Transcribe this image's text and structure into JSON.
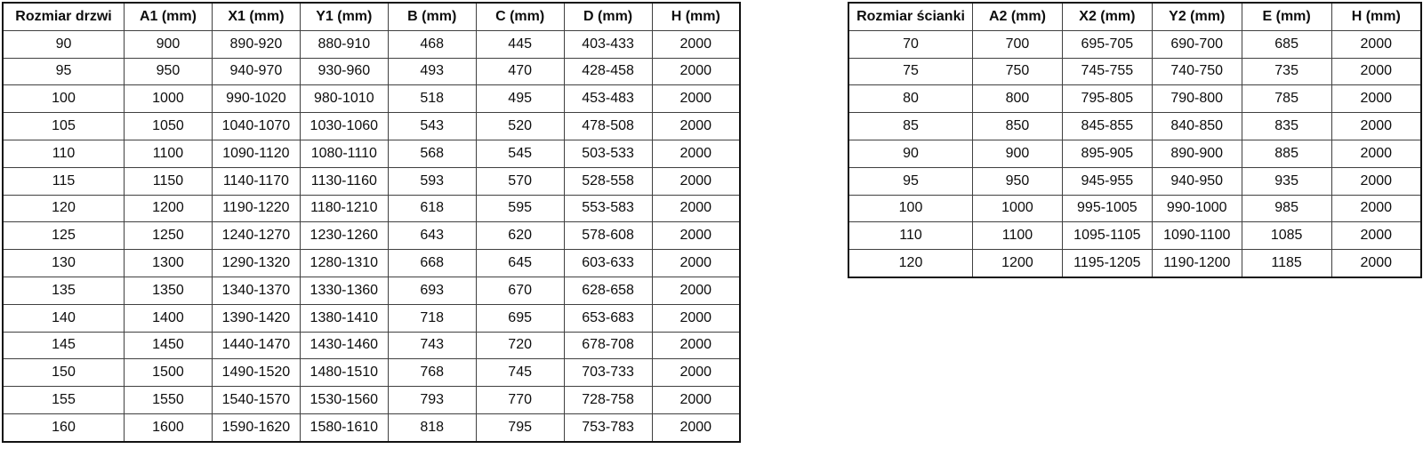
{
  "door_table": {
    "title": "Rozmiar drzwi",
    "headers": [
      "Rozmiar drzwi",
      "A1 (mm)",
      "X1 (mm)",
      "Y1 (mm)",
      "B (mm)",
      "C (mm)",
      "D (mm)",
      "H (mm)"
    ],
    "rows": [
      [
        "90",
        "900",
        "890-920",
        "880-910",
        "468",
        "445",
        "403-433",
        "2000"
      ],
      [
        "95",
        "950",
        "940-970",
        "930-960",
        "493",
        "470",
        "428-458",
        "2000"
      ],
      [
        "100",
        "1000",
        "990-1020",
        "980-1010",
        "518",
        "495",
        "453-483",
        "2000"
      ],
      [
        "105",
        "1050",
        "1040-1070",
        "1030-1060",
        "543",
        "520",
        "478-508",
        "2000"
      ],
      [
        "110",
        "1100",
        "1090-1120",
        "1080-1110",
        "568",
        "545",
        "503-533",
        "2000"
      ],
      [
        "115",
        "1150",
        "1140-1170",
        "1130-1160",
        "593",
        "570",
        "528-558",
        "2000"
      ],
      [
        "120",
        "1200",
        "1190-1220",
        "1180-1210",
        "618",
        "595",
        "553-583",
        "2000"
      ],
      [
        "125",
        "1250",
        "1240-1270",
        "1230-1260",
        "643",
        "620",
        "578-608",
        "2000"
      ],
      [
        "130",
        "1300",
        "1290-1320",
        "1280-1310",
        "668",
        "645",
        "603-633",
        "2000"
      ],
      [
        "135",
        "1350",
        "1340-1370",
        "1330-1360",
        "693",
        "670",
        "628-658",
        "2000"
      ],
      [
        "140",
        "1400",
        "1390-1420",
        "1380-1410",
        "718",
        "695",
        "653-683",
        "2000"
      ],
      [
        "145",
        "1450",
        "1440-1470",
        "1430-1460",
        "743",
        "720",
        "678-708",
        "2000"
      ],
      [
        "150",
        "1500",
        "1490-1520",
        "1480-1510",
        "768",
        "745",
        "703-733",
        "2000"
      ],
      [
        "155",
        "1550",
        "1540-1570",
        "1530-1560",
        "793",
        "770",
        "728-758",
        "2000"
      ],
      [
        "160",
        "1600",
        "1590-1620",
        "1580-1610",
        "818",
        "795",
        "753-783",
        "2000"
      ]
    ]
  },
  "wall_table": {
    "title": "Rozmiar ścianki",
    "headers": [
      "Rozmiar ścianki",
      "A2 (mm)",
      "X2 (mm)",
      "Y2 (mm)",
      "E (mm)",
      "H (mm)"
    ],
    "rows": [
      [
        "70",
        "700",
        "695-705",
        "690-700",
        "685",
        "2000"
      ],
      [
        "75",
        "750",
        "745-755",
        "740-750",
        "735",
        "2000"
      ],
      [
        "80",
        "800",
        "795-805",
        "790-800",
        "785",
        "2000"
      ],
      [
        "85",
        "850",
        "845-855",
        "840-850",
        "835",
        "2000"
      ],
      [
        "90",
        "900",
        "895-905",
        "890-900",
        "885",
        "2000"
      ],
      [
        "95",
        "950",
        "945-955",
        "940-950",
        "935",
        "2000"
      ],
      [
        "100",
        "1000",
        "995-1005",
        "990-1000",
        "985",
        "2000"
      ],
      [
        "110",
        "1100",
        "1095-1105",
        "1090-1100",
        "1085",
        "2000"
      ],
      [
        "120",
        "1200",
        "1195-1205",
        "1190-1200",
        "1185",
        "2000"
      ]
    ]
  }
}
